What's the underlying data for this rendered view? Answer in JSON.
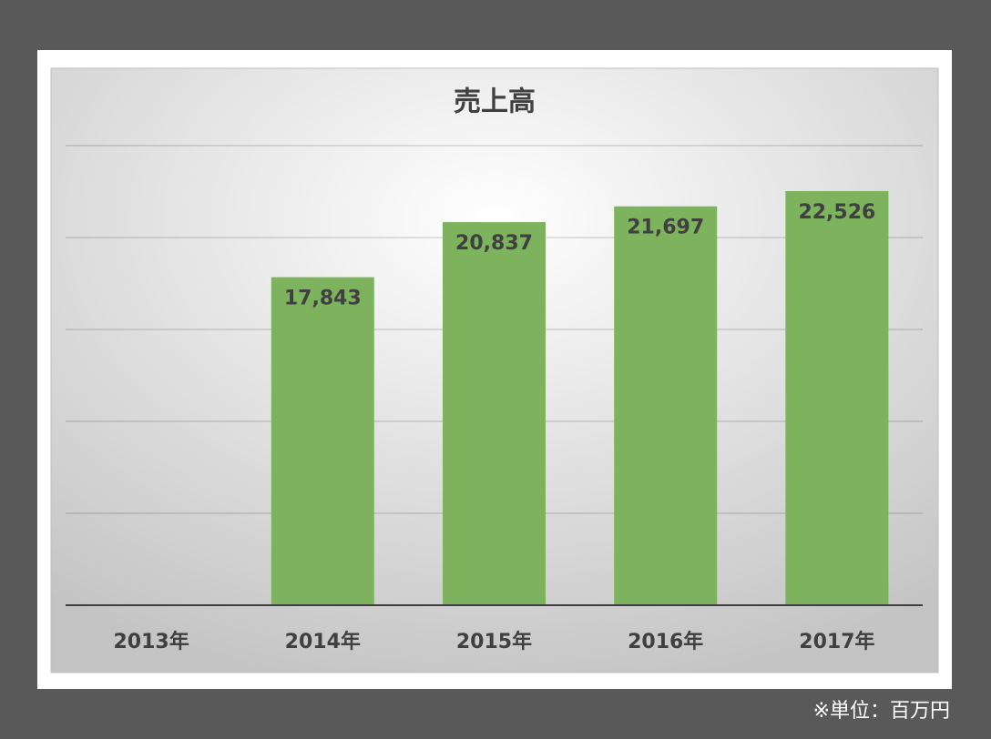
{
  "chart_data": {
    "type": "bar",
    "title": "売上高",
    "categories": [
      "2013年",
      "2014年",
      "2015年",
      "2016年",
      "2017年"
    ],
    "values": [
      null,
      17843,
      20837,
      21697,
      22526
    ],
    "value_labels": [
      null,
      "17,843",
      "20,837",
      "21,697",
      "22,526"
    ],
    "color": "#7cb35c",
    "ylim": [
      0,
      25000
    ],
    "yticks": [
      0,
      5000,
      10000,
      15000,
      20000,
      25000
    ],
    "grid": true,
    "note": "※単位：百万円"
  }
}
